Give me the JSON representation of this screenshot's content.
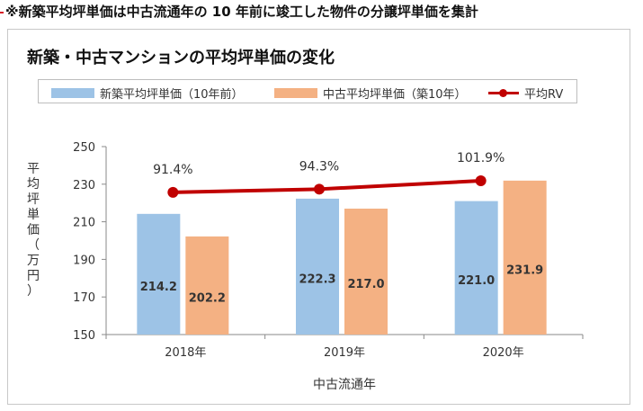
{
  "note": "※新築平均坪単価は中古流通年の 10 年前に竣工した物件の分譲坪単価を集計",
  "chart_data": {
    "type": "bar",
    "title": "新築・中古マンションの平均坪単価の変化",
    "xlabel": "中古流通年",
    "ylabel": "平均坪単価（万円）",
    "categories": [
      "2018年",
      "2019年",
      "2020年"
    ],
    "ylim": [
      150,
      250
    ],
    "yticks": [
      150,
      170,
      190,
      210,
      230,
      250
    ],
    "series": [
      {
        "name": "新築平均坪単価（10年前）",
        "type": "bar",
        "color": "#9dc3e6",
        "values": [
          214.2,
          222.3,
          221.0
        ],
        "labels": [
          "214.2",
          "222.3",
          "221.0"
        ]
      },
      {
        "name": "中古平均坪単価（築10年）",
        "type": "bar",
        "color": "#f4b183",
        "values": [
          202.2,
          217.0,
          231.9
        ],
        "labels": [
          "202.2",
          "217.0",
          "231.9"
        ]
      },
      {
        "name": "平均RV",
        "type": "line",
        "color": "#c00000",
        "values": [
          91.4,
          94.3,
          101.9
        ],
        "labels": [
          "91.4%",
          "94.3%",
          "101.9%"
        ]
      }
    ],
    "grid": false,
    "legend_position": "top"
  }
}
